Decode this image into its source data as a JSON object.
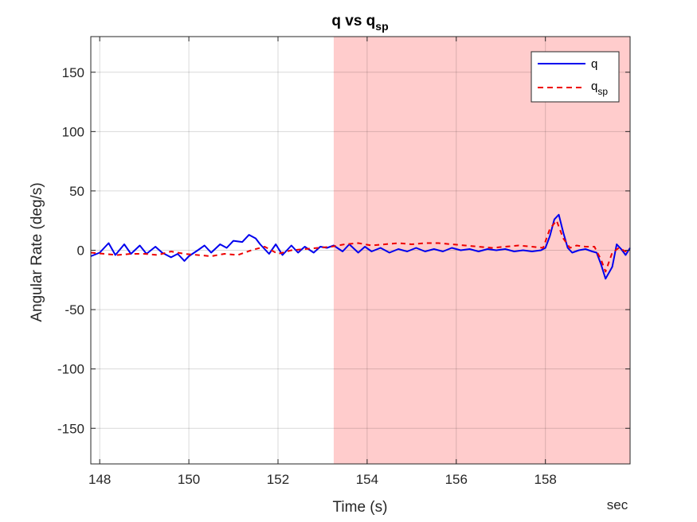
{
  "chart_data": {
    "type": "line",
    "title": "q vs q",
    "title_subscript": "sp",
    "xlabel": "Time (s)",
    "ylabel": "Angular Rate (deg/s)",
    "x_unit_label": "sec",
    "xlim": [
      147.8,
      159.9
    ],
    "ylim": [
      -180,
      180
    ],
    "xticks": [
      148,
      150,
      152,
      154,
      156,
      158
    ],
    "yticks": [
      -150,
      -100,
      -50,
      0,
      50,
      100,
      150
    ],
    "grid": true,
    "legend_position": "top-right",
    "highlight_region": {
      "x_start": 153.25,
      "x_end": 159.9,
      "color": "#ffcccc"
    },
    "series": [
      {
        "name": "q",
        "subscript": "",
        "color": "#0000ee",
        "style": "solid",
        "x": [
          147.8,
          148.0,
          148.2,
          148.35,
          148.55,
          148.7,
          148.9,
          149.05,
          149.25,
          149.4,
          149.6,
          149.75,
          149.9,
          150.0,
          150.2,
          150.35,
          150.5,
          150.7,
          150.85,
          151.0,
          151.2,
          151.35,
          151.5,
          151.6,
          151.8,
          151.95,
          152.1,
          152.3,
          152.45,
          152.6,
          152.8,
          152.95,
          153.1,
          153.25,
          153.45,
          153.6,
          153.8,
          153.95,
          154.1,
          154.3,
          154.5,
          154.7,
          154.9,
          155.1,
          155.3,
          155.5,
          155.7,
          155.9,
          156.1,
          156.3,
          156.5,
          156.7,
          156.9,
          157.1,
          157.3,
          157.5,
          157.7,
          157.9,
          158.0,
          158.1,
          158.2,
          158.3,
          158.4,
          158.5,
          158.6,
          158.75,
          158.9,
          159.05,
          159.15,
          159.25,
          159.35,
          159.5,
          159.6,
          159.7,
          159.8,
          159.9
        ],
        "y": [
          -5,
          -2,
          6,
          -4,
          5,
          -3,
          4,
          -3,
          3,
          -2,
          -6,
          -3,
          -9,
          -5,
          0,
          4,
          -2,
          5,
          2,
          8,
          7,
          13,
          10,
          5,
          -3,
          5,
          -4,
          4,
          -2,
          3,
          -2,
          3,
          2,
          4,
          -1,
          5,
          -2,
          3,
          -1,
          2,
          -2,
          1,
          -1,
          2,
          -1,
          1,
          -1,
          2,
          0,
          1,
          -1,
          1,
          0,
          1,
          -1,
          0,
          -1,
          0,
          2,
          12,
          26,
          30,
          15,
          2,
          -2,
          0,
          1,
          -1,
          -2,
          -12,
          -24,
          -14,
          5,
          1,
          -4,
          2
        ]
      },
      {
        "name": "q",
        "subscript": "sp",
        "color": "#ee0000",
        "style": "dashed",
        "x": [
          147.8,
          148.1,
          148.4,
          148.7,
          149.0,
          149.3,
          149.6,
          149.9,
          150.2,
          150.5,
          150.8,
          151.1,
          151.4,
          151.7,
          152.0,
          152.3,
          152.6,
          152.9,
          153.2,
          153.5,
          153.8,
          154.1,
          154.4,
          154.7,
          155.0,
          155.3,
          155.6,
          155.9,
          156.2,
          156.5,
          156.8,
          157.1,
          157.4,
          157.7,
          157.95,
          158.1,
          158.25,
          158.4,
          158.55,
          158.7,
          158.9,
          159.1,
          159.25,
          159.35,
          159.5,
          159.65,
          159.8,
          159.9
        ],
        "y": [
          -2,
          -3,
          -4,
          -3,
          -3,
          -4,
          -1,
          -3,
          -4,
          -5,
          -3,
          -4,
          0,
          3,
          -3,
          0,
          1,
          2,
          3,
          5,
          6,
          4,
          5,
          6,
          5,
          6,
          6,
          5,
          4,
          3,
          2,
          3,
          4,
          3,
          2,
          18,
          25,
          10,
          2,
          4,
          3,
          3,
          -8,
          -18,
          -2,
          2,
          -1,
          1
        ]
      }
    ]
  }
}
